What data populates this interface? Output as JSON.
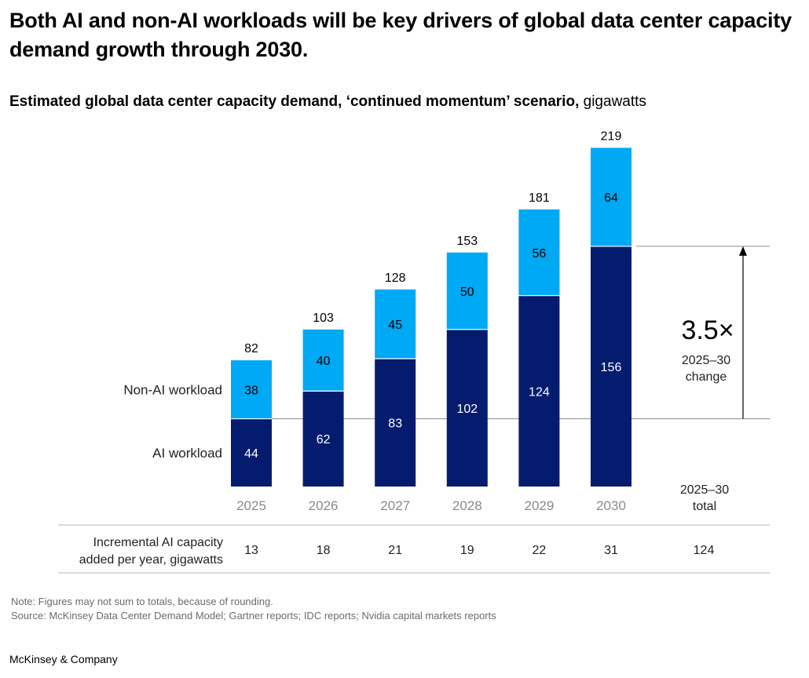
{
  "title": "Both AI and non-AI workloads will be key drivers of global data center capacity demand growth through 2030.",
  "subtitle_main": "Estimated global data center capacity demand, ‘continued momentum’ scenario,",
  "subtitle_unit": "gigawatts",
  "chart_data": {
    "type": "bar",
    "stacked": true,
    "categories": [
      "2025",
      "2026",
      "2027",
      "2028",
      "2029",
      "2030"
    ],
    "series": [
      {
        "name": "AI workload",
        "values": [
          44,
          62,
          83,
          102,
          124,
          156
        ],
        "color": "#051c6e"
      },
      {
        "name": "Non-AI workload",
        "values": [
          38,
          40,
          45,
          50,
          56,
          64
        ],
        "color": "#00a9f4"
      }
    ],
    "totals": [
      82,
      103,
      128,
      153,
      181,
      219
    ],
    "annotation": {
      "value": "3.5×",
      "label_line1": "2025–30",
      "label_line2": "change"
    },
    "total_header": {
      "line1": "2025–30",
      "line2": "total"
    },
    "incremental": {
      "label_line1": "Incremental AI capacity",
      "label_line2": "added per year, gigawatts",
      "values": [
        "13",
        "18",
        "21",
        "19",
        "22",
        "31"
      ],
      "total": "124"
    }
  },
  "note": "Note: Figures may not sum to totals, because of rounding.",
  "source": "Source: McKinsey Data Center Demand Model; Gartner reports; IDC reports; Nvidia capital markets reports",
  "brand": "McKinsey & Company"
}
